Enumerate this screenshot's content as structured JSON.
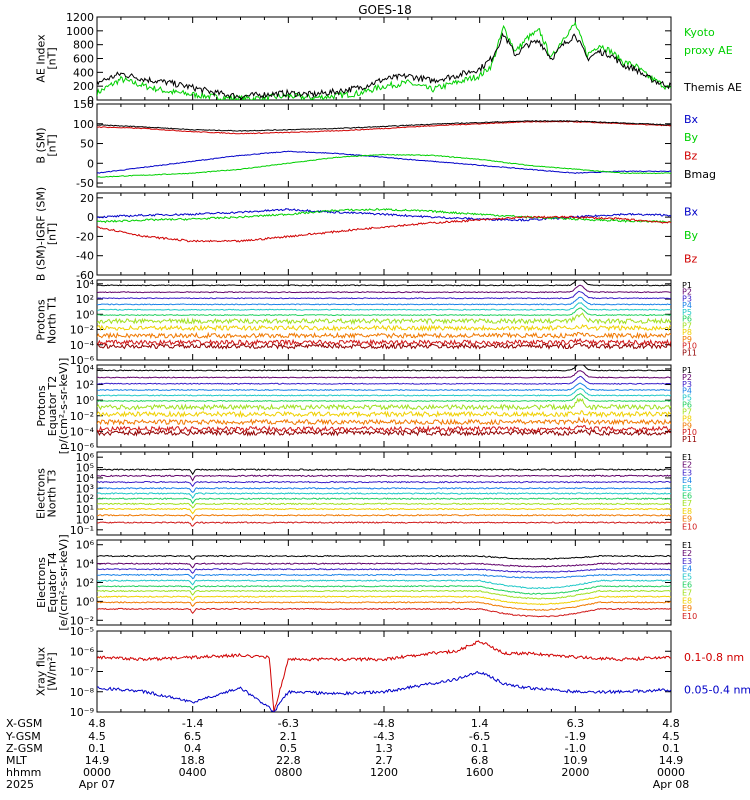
{
  "title": "GOES-18",
  "colors": {
    "black": "#000000",
    "green": "#00d000",
    "blue": "#0000c8",
    "red": "#d00000",
    "channel_colors": [
      "#000000",
      "#60006a",
      "#3a1ec8",
      "#1a82e8",
      "#20c8c8",
      "#22d060",
      "#a0e020",
      "#f0d000",
      "#f07800",
      "#d01818",
      "#900000"
    ]
  },
  "panels": [
    {
      "id": "ae",
      "ylabel_lines": [
        "AE Index",
        "[nT]"
      ],
      "ytick_labels": [
        "1200",
        "1000",
        "800",
        "600",
        "400",
        "200",
        "0"
      ],
      "yticks": [
        1200,
        1000,
        800,
        600,
        400,
        200,
        0
      ],
      "ylim": [
        0,
        1200
      ],
      "log": false,
      "legend": [
        {
          "text": "Kyoto",
          "color": "#00d000"
        },
        {
          "text": "proxy AE",
          "color": "#00d000"
        },
        {
          "text": "",
          "color": "#000"
        },
        {
          "text": "Themis AE",
          "color": "#000000"
        }
      ]
    },
    {
      "id": "bsm",
      "ylabel_lines": [
        "B (SM)",
        "[nT]"
      ],
      "ytick_labels": [
        "150",
        "100",
        "50",
        "0",
        "-50"
      ],
      "yticks": [
        150,
        100,
        50,
        0,
        -50
      ],
      "ylim": [
        -60,
        150
      ],
      "log": false,
      "legend": [
        {
          "text": "Bx",
          "color": "#0000c8"
        },
        {
          "text": "By",
          "color": "#00d000"
        },
        {
          "text": "Bz",
          "color": "#d00000"
        },
        {
          "text": "Bmag",
          "color": "#000000"
        }
      ]
    },
    {
      "id": "bdiff",
      "ylabel_lines": [
        "B (SM)-IGRF (SM)",
        "[nT]"
      ],
      "ytick_labels": [
        "20",
        "0",
        "-20",
        "-40",
        "-60"
      ],
      "yticks": [
        20,
        0,
        -20,
        -40,
        -60
      ],
      "ylim": [
        -60,
        25
      ],
      "log": false,
      "legend": [
        {
          "text": "Bx",
          "color": "#0000c8"
        },
        {
          "text": "By",
          "color": "#00d000"
        },
        {
          "text": "Bz",
          "color": "#d00000"
        }
      ]
    },
    {
      "id": "protons_north",
      "ylabel_lines": [
        "Protons",
        "North T1"
      ],
      "ytick_labels": [
        "10⁴",
        "10²",
        "10⁰",
        "10⁻²",
        "10⁻⁴",
        "10⁻⁶"
      ],
      "yticks": [
        4,
        2,
        0,
        -2,
        -4,
        -6
      ],
      "ylim": [
        -6,
        4.5
      ],
      "log": true,
      "legend_channels": [
        "P1",
        "P2",
        "P3",
        "P4",
        "P5",
        "P6",
        "P7",
        "P8",
        "P9",
        "P10",
        "P11"
      ]
    },
    {
      "id": "protons_equator",
      "ylabel_lines": [
        "Protons",
        "Equator T2",
        "[p/(cm²-s-sr-keV)]"
      ],
      "ytick_labels": [
        "10⁴",
        "10²",
        "10⁰",
        "10⁻²",
        "10⁻⁴",
        "10⁻⁶"
      ],
      "yticks": [
        4,
        2,
        0,
        -2,
        -4,
        -6
      ],
      "ylim": [
        -6,
        4.5
      ],
      "log": true,
      "legend_channels": [
        "P1",
        "P2",
        "P3",
        "P4",
        "P5",
        "P6",
        "P7",
        "P8",
        "P9",
        "P10",
        "P11"
      ]
    },
    {
      "id": "electrons_north",
      "ylabel_lines": [
        "Electrons",
        "North T3"
      ],
      "ytick_labels": [
        "10⁶",
        "10⁵",
        "10⁴",
        "10³",
        "10²",
        "10¹",
        "10⁰",
        "10⁻¹"
      ],
      "yticks": [
        6,
        5,
        4,
        3,
        2,
        1,
        0,
        -1
      ],
      "ylim": [
        -1.5,
        6.5
      ],
      "log": true,
      "legend_channels": [
        "E1",
        "E2",
        "E3",
        "E4",
        "E5",
        "E6",
        "E7",
        "E8",
        "E9",
        "E10"
      ]
    },
    {
      "id": "electrons_equator",
      "ylabel_lines": [
        "Electrons",
        "Equator T4",
        "[e/(cm²-s-sr-keV)]"
      ],
      "ytick_labels": [
        "10⁶",
        "10⁴",
        "10²",
        "10⁰",
        "10⁻²"
      ],
      "yticks": [
        6,
        4,
        2,
        0,
        -2
      ],
      "ylim": [
        -2.5,
        6.5
      ],
      "log": true,
      "legend_channels": [
        "E1",
        "E2",
        "E3",
        "E4",
        "E5",
        "E6",
        "E7",
        "E8",
        "E9",
        "E10"
      ]
    },
    {
      "id": "xray",
      "ylabel_lines": [
        "Xray flux",
        "[W/m²]"
      ],
      "ytick_labels": [
        "10⁻⁵",
        "10⁻⁶",
        "10⁻⁷",
        "10⁻⁸",
        "10⁻⁹"
      ],
      "yticks": [
        -5,
        -6,
        -7,
        -8,
        -9
      ],
      "ylim": [
        -9,
        -5
      ],
      "log": true,
      "legend": [
        {
          "text": "0.1-0.8 nm",
          "color": "#d00000"
        },
        {
          "text": "0.05-0.4 nm",
          "color": "#0000c8"
        }
      ]
    }
  ],
  "footer": {
    "row_labels": [
      "X-GSM",
      "Y-GSM",
      "Z-GSM",
      "MLT",
      "hhmm",
      "2025"
    ],
    "columns": [
      [
        "4.8",
        "4.5",
        "0.1",
        "14.9",
        "0000",
        "Apr 07"
      ],
      [
        "-1.4",
        "6.5",
        "0.4",
        "18.8",
        "0400",
        ""
      ],
      [
        "-6.3",
        "2.1",
        "0.5",
        "22.8",
        "0800",
        ""
      ],
      [
        "-4.8",
        "-4.3",
        "1.3",
        "2.7",
        "1200",
        ""
      ],
      [
        "1.4",
        "-6.5",
        "0.1",
        "6.8",
        "1600",
        ""
      ],
      [
        "6.3",
        "-1.9",
        "-1.0",
        "10.9",
        "2000",
        ""
      ],
      [
        "4.8",
        "4.5",
        "0.1",
        "14.9",
        "0000",
        "Apr 08"
      ]
    ]
  },
  "chart_data": [
    {
      "type": "line",
      "title": "AE Index",
      "ylabel": "AE Index [nT]",
      "x_hours": [
        0,
        24
      ],
      "ylim": [
        0,
        1200
      ],
      "series": [
        {
          "name": "Kyoto proxy AE",
          "color": "#00d000",
          "x": [
            0,
            1,
            2,
            3,
            4,
            5,
            6,
            7,
            8,
            9,
            10,
            11,
            12,
            13,
            14,
            15,
            15.5,
            16,
            16.5,
            17,
            17.5,
            18,
            18.5,
            19,
            19.5,
            20,
            20.5,
            21,
            21.5,
            22,
            22.5,
            23,
            23.5,
            24
          ],
          "y": [
            100,
            300,
            200,
            120,
            80,
            40,
            20,
            30,
            60,
            30,
            60,
            100,
            200,
            250,
            150,
            250,
            300,
            350,
            500,
            1050,
            700,
            900,
            1000,
            600,
            900,
            1100,
            650,
            800,
            700,
            550,
            500,
            350,
            250,
            150
          ]
        },
        {
          "name": "Themis AE",
          "color": "#000000",
          "x": [
            0,
            1,
            2,
            3,
            4,
            5,
            6,
            7,
            8,
            9,
            10,
            11,
            12,
            13,
            14,
            15,
            15.5,
            16,
            16.5,
            17,
            17.5,
            18,
            18.5,
            19,
            19.5,
            20,
            20.5,
            21,
            21.5,
            22,
            22.5,
            23,
            23.5,
            24
          ],
          "y": [
            250,
            380,
            300,
            250,
            180,
            100,
            50,
            80,
            100,
            80,
            120,
            180,
            300,
            350,
            280,
            350,
            400,
            450,
            600,
            950,
            650,
            800,
            850,
            600,
            800,
            950,
            600,
            700,
            650,
            500,
            450,
            330,
            250,
            200
          ]
        }
      ]
    },
    {
      "type": "line",
      "title": "B (SM)",
      "ylabel": "B (SM) [nT]",
      "ylim": [
        -60,
        150
      ],
      "series": [
        {
          "name": "Bx",
          "color": "#0000c8",
          "x": [
            0,
            2,
            4,
            6,
            8,
            10,
            12,
            14,
            16,
            18,
            20,
            22,
            24
          ],
          "y": [
            -25,
            -10,
            5,
            20,
            30,
            25,
            15,
            5,
            -5,
            -15,
            -25,
            -20,
            -20
          ]
        },
        {
          "name": "By",
          "color": "#00d000",
          "x": [
            0,
            2,
            4,
            6,
            8,
            10,
            12,
            14,
            16,
            18,
            20,
            22,
            24
          ],
          "y": [
            -35,
            -30,
            -25,
            -15,
            0,
            15,
            22,
            20,
            10,
            -5,
            -15,
            -25,
            -25
          ]
        },
        {
          "name": "Bz",
          "color": "#d00000",
          "x": [
            0,
            2,
            4,
            6,
            8,
            10,
            12,
            14,
            16,
            18,
            20,
            22,
            24
          ],
          "y": [
            92,
            88,
            80,
            75,
            78,
            82,
            88,
            95,
            100,
            105,
            105,
            100,
            95
          ]
        },
        {
          "name": "Bmag",
          "color": "#000000",
          "x": [
            0,
            2,
            4,
            6,
            8,
            10,
            12,
            14,
            16,
            18,
            20,
            22,
            24
          ],
          "y": [
            97,
            92,
            85,
            82,
            85,
            88,
            93,
            99,
            103,
            107,
            107,
            102,
            97
          ]
        }
      ]
    },
    {
      "type": "line",
      "title": "B (SM)-IGRF (SM)",
      "ylabel": "B (SM)-IGRF (SM) [nT]",
      "ylim": [
        -60,
        25
      ],
      "series": [
        {
          "name": "Bx",
          "color": "#0000c8",
          "x": [
            0,
            2,
            4,
            6,
            8,
            10,
            12,
            14,
            16,
            18,
            20,
            22,
            24
          ],
          "y": [
            0,
            2,
            3,
            5,
            8,
            5,
            3,
            0,
            -2,
            -3,
            0,
            3,
            2
          ]
        },
        {
          "name": "By",
          "color": "#00d000",
          "x": [
            0,
            2,
            4,
            6,
            8,
            10,
            12,
            14,
            16,
            18,
            20,
            22,
            24
          ],
          "y": [
            -5,
            -3,
            -2,
            0,
            3,
            7,
            8,
            6,
            3,
            0,
            -2,
            -4,
            -5
          ]
        },
        {
          "name": "Bz",
          "color": "#d00000",
          "x": [
            0,
            2,
            4,
            6,
            8,
            10,
            12,
            14,
            16,
            18,
            20,
            22,
            24
          ],
          "y": [
            -10,
            -20,
            -25,
            -25,
            -20,
            -15,
            -10,
            -6,
            -3,
            0,
            0,
            -2,
            -6
          ]
        }
      ]
    },
    {
      "type": "line",
      "title": "Protons North T1",
      "log_y": true,
      "ylim_exp": [
        -6,
        4.5
      ],
      "channels": [
        "P1",
        "P2",
        "P3",
        "P4",
        "P5",
        "P6",
        "P7",
        "P8",
        "P9",
        "P10",
        "P11"
      ],
      "levels_log10": [
        3.8,
        2.9,
        2.1,
        1.3,
        0.6,
        -0.1,
        -0.9,
        -1.8,
        -2.8,
        -3.7,
        -4.2
      ]
    },
    {
      "type": "line",
      "title": "Protons Equator T2",
      "log_y": true,
      "ylim_exp": [
        -6,
        4.5
      ],
      "channels": [
        "P1",
        "P2",
        "P3",
        "P4",
        "P5",
        "P6",
        "P7",
        "P8",
        "P9",
        "P10",
        "P11"
      ],
      "levels_log10": [
        3.8,
        2.9,
        2.1,
        1.3,
        0.6,
        -0.1,
        -0.9,
        -1.8,
        -2.8,
        -3.7,
        -4.2
      ]
    },
    {
      "type": "line",
      "title": "Electrons North T3",
      "log_y": true,
      "ylim_exp": [
        -1.5,
        6.5
      ],
      "channels": [
        "E1",
        "E2",
        "E3",
        "E4",
        "E5",
        "E6",
        "E7",
        "E8",
        "E9",
        "E10"
      ],
      "levels_log10": [
        4.8,
        4.2,
        3.6,
        3.0,
        2.5,
        2.0,
        1.5,
        1.0,
        0.4,
        -0.3
      ]
    },
    {
      "type": "line",
      "title": "Electrons Equator T4",
      "log_y": true,
      "ylim_exp": [
        -2.5,
        6.5
      ],
      "channels": [
        "E1",
        "E2",
        "E3",
        "E4",
        "E5",
        "E6",
        "E7",
        "E8",
        "E9",
        "E10"
      ],
      "levels_log10": [
        4.8,
        4.0,
        3.4,
        2.8,
        2.2,
        1.6,
        1.1,
        0.5,
        -0.1,
        -0.8
      ]
    },
    {
      "type": "line",
      "title": "Xray flux",
      "ylabel": "Xray flux [W/m²]",
      "log_y": true,
      "ylim_exp": [
        -9,
        -5
      ],
      "series": [
        {
          "name": "0.1-0.8 nm",
          "color": "#d00000",
          "x": [
            0,
            2,
            4,
            6,
            7.2,
            7.4,
            8,
            10,
            12,
            14,
            15,
            16,
            17,
            18,
            20,
            22,
            24
          ],
          "y": [
            -6.3,
            -6.4,
            -6.3,
            -6.2,
            -6.3,
            -9,
            -6.4,
            -6.4,
            -6.4,
            -6.1,
            -6.0,
            -5.5,
            -6.1,
            -6.1,
            -6.3,
            -6.4,
            -6.3
          ]
        },
        {
          "name": "0.05-0.4 nm",
          "color": "#0000c8",
          "x": [
            0,
            2,
            4,
            6,
            7.2,
            7.4,
            8,
            10,
            12,
            14,
            15,
            16,
            17,
            18,
            20,
            22,
            24
          ],
          "y": [
            -7.8,
            -8.0,
            -8.5,
            -7.8,
            -8.8,
            -9,
            -8.0,
            -8.1,
            -8.0,
            -7.6,
            -7.4,
            -7.0,
            -7.6,
            -7.8,
            -8.0,
            -8.0,
            -7.9
          ]
        }
      ]
    }
  ]
}
